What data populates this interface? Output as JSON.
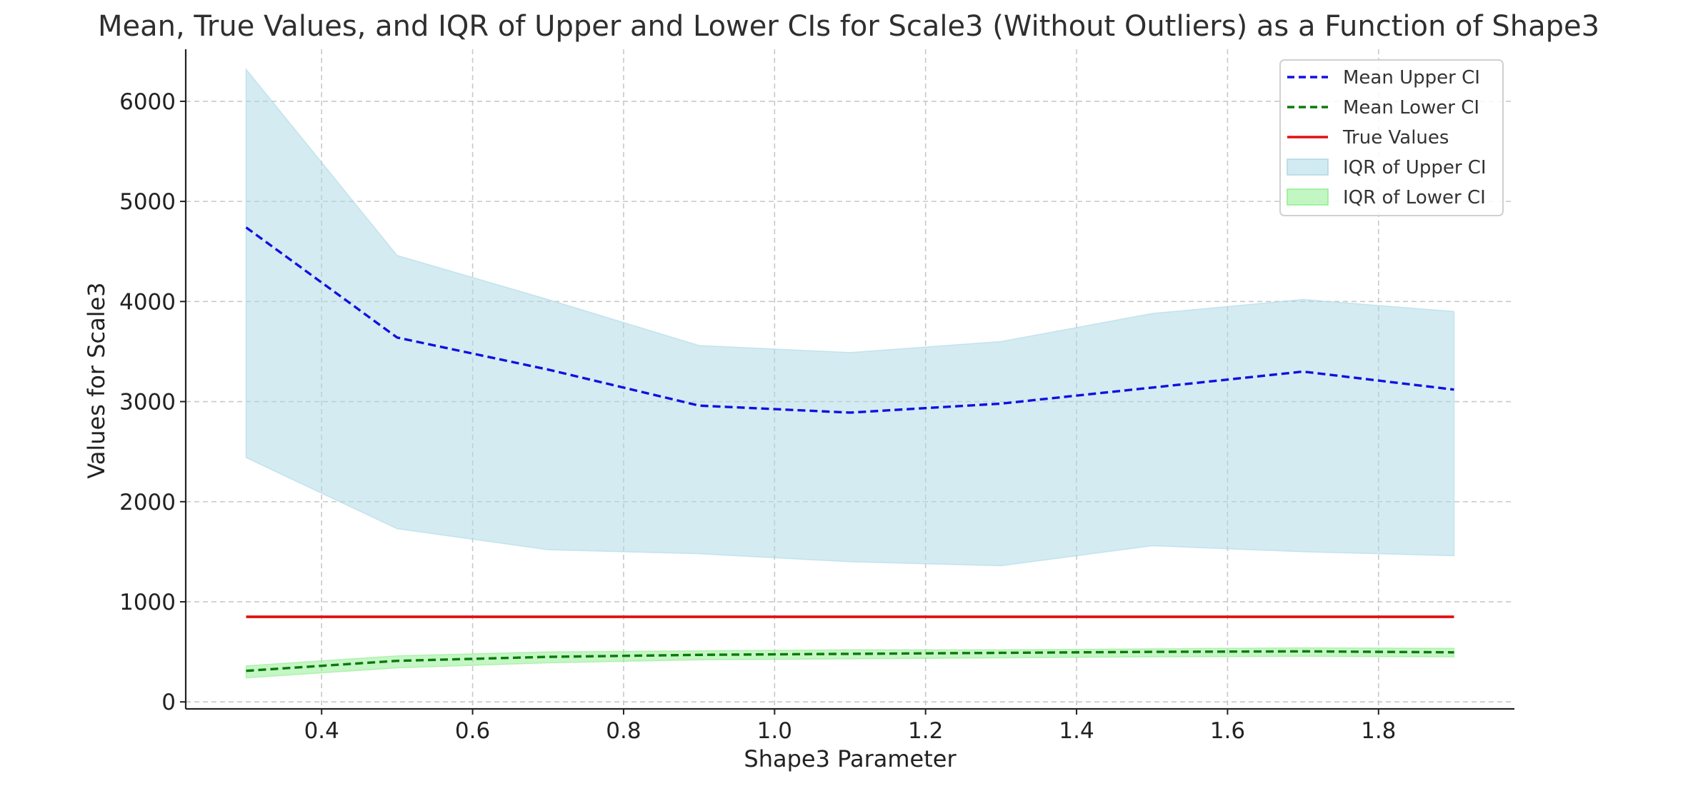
{
  "chart_data": {
    "type": "line",
    "title": "Mean, True Values, and IQR of Upper and Lower CIs for Scale3 (Without Outliers) as a Function of Shape3",
    "xlabel": "Shape3 Parameter",
    "ylabel": "Values for Scale3",
    "xlim": [
      0.22,
      1.98
    ],
    "ylim": [
      -70,
      6520
    ],
    "xticks": [
      0.4,
      0.6,
      0.8,
      1.0,
      1.2,
      1.4,
      1.6,
      1.8
    ],
    "xtick_labels": [
      "0.4",
      "0.6",
      "0.8",
      "1.0",
      "1.2",
      "1.4",
      "1.6",
      "1.8"
    ],
    "yticks": [
      0,
      1000,
      2000,
      3000,
      4000,
      5000,
      6000
    ],
    "ytick_labels": [
      "0",
      "1000",
      "2000",
      "3000",
      "4000",
      "5000",
      "6000"
    ],
    "grid": true,
    "legend_position": "top-right",
    "x": [
      0.3,
      0.5,
      0.7,
      0.9,
      1.1,
      1.3,
      1.5,
      1.7,
      1.9
    ],
    "series": [
      {
        "name": "Mean Upper CI",
        "kind": "line",
        "style": "dashed",
        "color": "#1010e0",
        "values": [
          4740,
          3640,
          3320,
          2960,
          2890,
          2980,
          3140,
          3300,
          3120
        ]
      },
      {
        "name": "Mean Lower CI",
        "kind": "line",
        "style": "dashed",
        "color": "#0a7a0a",
        "values": [
          310,
          410,
          450,
          470,
          480,
          490,
          500,
          505,
          495
        ]
      },
      {
        "name": "True Values",
        "kind": "line",
        "style": "solid",
        "color": "#e01010",
        "values": [
          850,
          850,
          850,
          850,
          850,
          850,
          850,
          850,
          850
        ]
      },
      {
        "name": "IQR of Upper CI",
        "kind": "band",
        "color": "#add8e6",
        "lower": [
          2440,
          1730,
          1520,
          1480,
          1400,
          1360,
          1560,
          1500,
          1460
        ],
        "upper": [
          6320,
          4460,
          4020,
          3560,
          3490,
          3600,
          3880,
          4020,
          3900
        ]
      },
      {
        "name": "IQR of Lower CI",
        "kind": "band",
        "color": "#90ee90",
        "lower": [
          240,
          340,
          390,
          420,
          430,
          440,
          450,
          455,
          450
        ],
        "upper": [
          360,
          460,
          500,
          510,
          520,
          520,
          530,
          540,
          535
        ]
      }
    ],
    "legend_order": [
      "Mean Upper CI",
      "Mean Lower CI",
      "True Values",
      "IQR of Upper CI",
      "IQR of Lower CI"
    ]
  }
}
